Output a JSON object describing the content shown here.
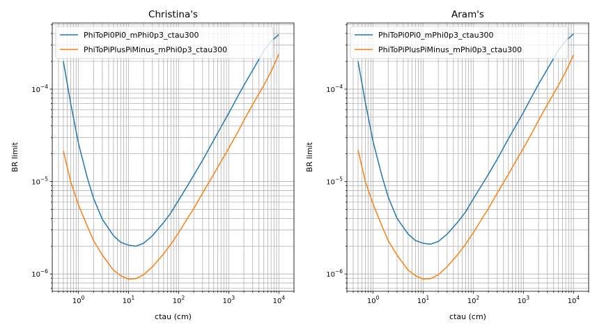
{
  "chart_data": [
    {
      "type": "line",
      "title": "Christina's",
      "xlabel": "ctau (cm)",
      "ylabel": "BR limit",
      "xscale": "log",
      "yscale": "log",
      "xlim": [
        0.3,
        20000
      ],
      "ylim": [
        6.5e-07,
        0.00052
      ],
      "xticks": [
        {
          "value": 1,
          "base": "10",
          "exp": "0"
        },
        {
          "value": 10,
          "base": "10",
          "exp": "1"
        },
        {
          "value": 100,
          "base": "10",
          "exp": "2"
        },
        {
          "value": 1000,
          "base": "10",
          "exp": "3"
        },
        {
          "value": 10000,
          "base": "10",
          "exp": "4"
        }
      ],
      "yticks": [
        {
          "value": 1e-06,
          "base": "10",
          "exp": "−6"
        },
        {
          "value": 1e-05,
          "base": "10",
          "exp": "−5"
        },
        {
          "value": 0.0001,
          "base": "10",
          "exp": "−4"
        }
      ],
      "grid": true,
      "legend": "upper-left",
      "series": [
        {
          "name": "PhiToPi0Pi0_mPhi0p3_ctau300",
          "color": "#1f77b4",
          "x": [
            0.5,
            0.7,
            1,
            1.5,
            2,
            3,
            5,
            7,
            10,
            14,
            20,
            30,
            50,
            70,
            100,
            150,
            200,
            300,
            500,
            700,
            1000,
            1500,
            2000,
            3000,
            5000,
            7000,
            10000
          ],
          "y": [
            0.0002,
            7e-05,
            2.6e-05,
            1.1e-05,
            6.6e-06,
            3.9e-06,
            2.6e-06,
            2.2e-06,
            2.05e-06,
            2e-06,
            2.15e-06,
            2.6e-06,
            3.6e-06,
            4.6e-06,
            6.3e-06,
            9e-06,
            1.17e-05,
            1.7e-05,
            2.8e-05,
            3.9e-05,
            5.5e-05,
            8.3e-05,
            0.00011,
            0.00016,
            0.00026,
            0.00033,
            0.00039
          ]
        },
        {
          "name": "PhiToPiPlusPiMinus_mPhi0p3_ctau300",
          "color": "#ff7f0e",
          "x": [
            0.5,
            0.7,
            1,
            1.5,
            2,
            3,
            5,
            7,
            10,
            14,
            20,
            30,
            50,
            70,
            100,
            150,
            200,
            300,
            500,
            700,
            1000,
            1500,
            2000,
            3000,
            5000,
            7000,
            10000
          ],
          "y": [
            2.15e-05,
            1e-05,
            5.6e-06,
            3.3e-06,
            2.3e-06,
            1.6e-06,
            1.1e-06,
            9.6e-07,
            8.8e-07,
            8.9e-07,
            9.8e-07,
            1.2e-06,
            1.65e-06,
            2.1e-06,
            2.8e-06,
            4e-06,
            5.1e-06,
            7.5e-06,
            1.2e-05,
            1.65e-05,
            2.3e-05,
            3.4e-05,
            4.6e-05,
            6.8e-05,
            0.00011,
            0.000155,
            0.00024
          ]
        }
      ]
    },
    {
      "type": "line",
      "title": "Aram's",
      "xlabel": "ctau (cm)",
      "ylabel": "BR limit",
      "xscale": "log",
      "yscale": "log",
      "xlim": [
        0.3,
        20000
      ],
      "ylim": [
        6.5e-07,
        0.00052
      ],
      "xticks": [
        {
          "value": 1,
          "base": "10",
          "exp": "0"
        },
        {
          "value": 10,
          "base": "10",
          "exp": "1"
        },
        {
          "value": 100,
          "base": "10",
          "exp": "2"
        },
        {
          "value": 1000,
          "base": "10",
          "exp": "3"
        },
        {
          "value": 10000,
          "base": "10",
          "exp": "4"
        }
      ],
      "yticks": [
        {
          "value": 1e-06,
          "base": "10",
          "exp": "−6"
        },
        {
          "value": 1e-05,
          "base": "10",
          "exp": "−5"
        },
        {
          "value": 0.0001,
          "base": "10",
          "exp": "−4"
        }
      ],
      "grid": true,
      "legend": "upper-left",
      "series": [
        {
          "name": "PhiToPi0Pi0_mPhi0p3_ctau300",
          "color": "#1f77b4",
          "x": [
            0.5,
            0.7,
            1,
            1.5,
            2,
            3,
            5,
            7,
            10,
            14,
            20,
            30,
            50,
            70,
            100,
            150,
            200,
            300,
            500,
            700,
            1000,
            1500,
            2000,
            3000,
            5000,
            7000,
            10000
          ],
          "y": [
            0.0002,
            7.2e-05,
            2.7e-05,
            1.15e-05,
            6.8e-06,
            4e-06,
            2.7e-06,
            2.3e-06,
            2.15e-06,
            2.1e-06,
            2.25e-06,
            2.7e-06,
            3.7e-06,
            4.7e-06,
            6.5e-06,
            9.3e-06,
            1.2e-05,
            1.75e-05,
            2.9e-05,
            4e-05,
            5.6e-05,
            8.5e-05,
            0.000113,
            0.000165,
            0.000265,
            0.000335,
            0.000395
          ]
        },
        {
          "name": "PhiToPiPlusPiMinus_mPhi0p3_ctau300",
          "color": "#ff7f0e",
          "x": [
            0.5,
            0.7,
            1,
            1.5,
            2,
            3,
            5,
            7,
            10,
            14,
            20,
            30,
            50,
            70,
            100,
            150,
            200,
            300,
            500,
            700,
            1000,
            1500,
            2000,
            3000,
            5000,
            7000,
            10000
          ],
          "y": [
            2.2e-05,
            1e-05,
            5.7e-06,
            3.3e-06,
            2.3e-06,
            1.6e-06,
            1.1e-06,
            9.6e-07,
            8.8e-07,
            8.9e-07,
            9.8e-07,
            1.2e-06,
            1.65e-06,
            2.1e-06,
            2.8e-06,
            4e-06,
            5.1e-06,
            7.5e-06,
            1.2e-05,
            1.65e-05,
            2.3e-05,
            3.4e-05,
            4.6e-05,
            6.8e-05,
            0.00011,
            0.000155,
            0.000235
          ]
        }
      ]
    }
  ]
}
